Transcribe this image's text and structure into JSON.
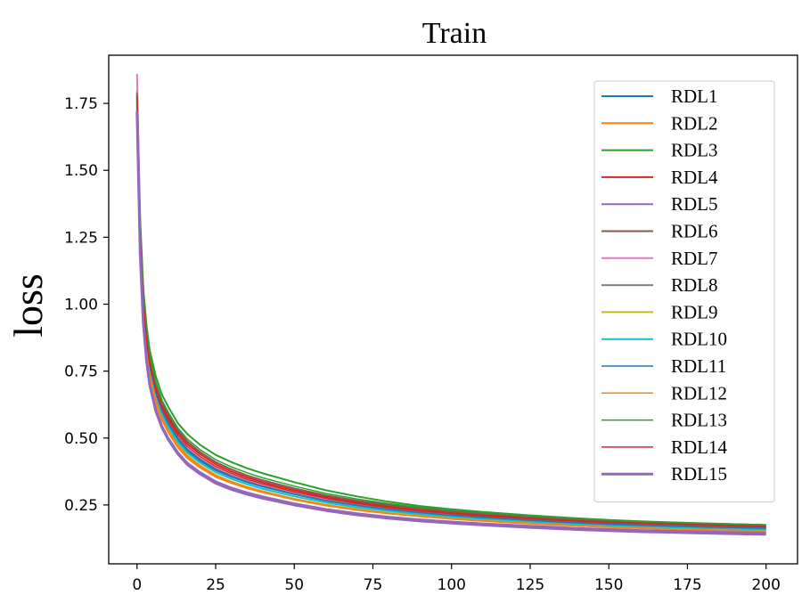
{
  "chart_data": {
    "type": "line",
    "title": "Train",
    "xlabel": "",
    "ylabel": "loss",
    "xlim": [
      -9,
      210
    ],
    "ylim": [
      0.03,
      1.93
    ],
    "x_ticks": [
      0,
      25,
      50,
      75,
      100,
      125,
      150,
      175,
      200
    ],
    "y_ticks": [
      0.25,
      0.5,
      0.75,
      1.0,
      1.25,
      1.5,
      1.75
    ],
    "y_tick_labels": [
      "0.25",
      "0.50",
      "0.75",
      "1.00",
      "1.25",
      "1.50",
      "1.75"
    ],
    "grid": false,
    "legend_position": "upper-right",
    "x_points": [
      0,
      1,
      2,
      3,
      4,
      6,
      8,
      10,
      13,
      16,
      20,
      25,
      30,
      35,
      40,
      50,
      60,
      70,
      80,
      90,
      100,
      110,
      125,
      140,
      150,
      160,
      175,
      190,
      200
    ],
    "series": [
      {
        "name": "RDL1",
        "color": "#1f77b4",
        "width": 2,
        "values": [
          1.76,
          1.25,
          0.99,
          0.85,
          0.76,
          0.66,
          0.59,
          0.545,
          0.49,
          0.45,
          0.415,
          0.38,
          0.355,
          0.335,
          0.318,
          0.29,
          0.266,
          0.248,
          0.234,
          0.222,
          0.212,
          0.204,
          0.193,
          0.184,
          0.179,
          0.175,
          0.17,
          0.166,
          0.163
        ]
      },
      {
        "name": "RDL2",
        "color": "#ff7f0e",
        "width": 2,
        "values": [
          1.74,
          1.22,
          0.96,
          0.82,
          0.73,
          0.63,
          0.565,
          0.52,
          0.465,
          0.425,
          0.39,
          0.355,
          0.332,
          0.313,
          0.297,
          0.27,
          0.248,
          0.231,
          0.218,
          0.207,
          0.198,
          0.19,
          0.18,
          0.172,
          0.167,
          0.163,
          0.158,
          0.154,
          0.151
        ]
      },
      {
        "name": "RDL3",
        "color": "#2ca02c",
        "width": 2,
        "values": [
          1.8,
          1.32,
          1.06,
          0.92,
          0.83,
          0.73,
          0.66,
          0.615,
          0.555,
          0.515,
          0.475,
          0.437,
          0.41,
          0.387,
          0.368,
          0.335,
          0.305,
          0.282,
          0.262,
          0.246,
          0.234,
          0.224,
          0.211,
          0.2,
          0.194,
          0.189,
          0.183,
          0.178,
          0.175
        ]
      },
      {
        "name": "RDL4",
        "color": "#d62728",
        "width": 2,
        "values": [
          1.78,
          1.28,
          1.02,
          0.88,
          0.79,
          0.69,
          0.62,
          0.575,
          0.52,
          0.478,
          0.44,
          0.402,
          0.375,
          0.353,
          0.335,
          0.305,
          0.28,
          0.26,
          0.244,
          0.231,
          0.22,
          0.212,
          0.2,
          0.191,
          0.186,
          0.182,
          0.177,
          0.173,
          0.17
        ]
      },
      {
        "name": "RDL5",
        "color": "#9467bd",
        "width": 2,
        "values": [
          1.73,
          1.2,
          0.94,
          0.8,
          0.71,
          0.61,
          0.545,
          0.5,
          0.447,
          0.408,
          0.373,
          0.338,
          0.315,
          0.297,
          0.282,
          0.256,
          0.235,
          0.219,
          0.206,
          0.196,
          0.188,
          0.181,
          0.172,
          0.164,
          0.16,
          0.156,
          0.152,
          0.148,
          0.146
        ]
      },
      {
        "name": "RDL6",
        "color": "#8c564b",
        "width": 2,
        "values": [
          1.79,
          1.29,
          1.03,
          0.89,
          0.8,
          0.7,
          0.63,
          0.585,
          0.528,
          0.487,
          0.448,
          0.41,
          0.383,
          0.36,
          0.342,
          0.312,
          0.286,
          0.266,
          0.25,
          0.237,
          0.226,
          0.218,
          0.206,
          0.197,
          0.191,
          0.187,
          0.182,
          0.178,
          0.175
        ]
      },
      {
        "name": "RDL7",
        "color": "#e377c2",
        "width": 2,
        "values": [
          1.86,
          1.27,
          1.0,
          0.86,
          0.77,
          0.67,
          0.6,
          0.555,
          0.5,
          0.46,
          0.423,
          0.387,
          0.361,
          0.34,
          0.323,
          0.294,
          0.27,
          0.251,
          0.236,
          0.224,
          0.214,
          0.206,
          0.195,
          0.186,
          0.181,
          0.177,
          0.172,
          0.168,
          0.165
        ]
      },
      {
        "name": "RDL8",
        "color": "#7f7f7f",
        "width": 2,
        "values": [
          1.77,
          1.26,
          1.0,
          0.86,
          0.77,
          0.67,
          0.6,
          0.555,
          0.5,
          0.458,
          0.42,
          0.384,
          0.358,
          0.337,
          0.32,
          0.291,
          0.267,
          0.249,
          0.234,
          0.222,
          0.212,
          0.204,
          0.193,
          0.184,
          0.179,
          0.175,
          0.17,
          0.166,
          0.163
        ]
      },
      {
        "name": "RDL9",
        "color": "#bcbd22",
        "width": 2,
        "values": [
          1.76,
          1.23,
          0.97,
          0.83,
          0.74,
          0.64,
          0.575,
          0.53,
          0.475,
          0.435,
          0.398,
          0.362,
          0.337,
          0.317,
          0.301,
          0.273,
          0.251,
          0.234,
          0.22,
          0.209,
          0.2,
          0.192,
          0.182,
          0.174,
          0.169,
          0.165,
          0.16,
          0.156,
          0.153
        ]
      },
      {
        "name": "RDL10",
        "color": "#17becf",
        "width": 2,
        "values": [
          1.75,
          1.24,
          0.98,
          0.84,
          0.75,
          0.65,
          0.585,
          0.54,
          0.485,
          0.445,
          0.408,
          0.372,
          0.347,
          0.327,
          0.31,
          0.282,
          0.259,
          0.241,
          0.227,
          0.215,
          0.206,
          0.198,
          0.188,
          0.179,
          0.174,
          0.17,
          0.165,
          0.161,
          0.158
        ]
      },
      {
        "name": "RDL11",
        "color": "#1f77b4",
        "width": 1.5,
        "values": [
          1.77,
          1.26,
          1.0,
          0.86,
          0.77,
          0.67,
          0.6,
          0.553,
          0.498,
          0.457,
          0.419,
          0.383,
          0.357,
          0.336,
          0.319,
          0.29,
          0.266,
          0.248,
          0.233,
          0.221,
          0.211,
          0.203,
          0.192,
          0.183,
          0.178,
          0.174,
          0.169,
          0.165,
          0.162
        ]
      },
      {
        "name": "RDL12",
        "color": "#ff7f0e",
        "width": 1.5,
        "values": [
          1.75,
          1.23,
          0.97,
          0.83,
          0.74,
          0.64,
          0.572,
          0.527,
          0.472,
          0.432,
          0.396,
          0.36,
          0.336,
          0.316,
          0.3,
          0.272,
          0.25,
          0.233,
          0.219,
          0.208,
          0.199,
          0.191,
          0.181,
          0.173,
          0.168,
          0.164,
          0.159,
          0.155,
          0.152
        ]
      },
      {
        "name": "RDL13",
        "color": "#2ca02c",
        "width": 1.5,
        "values": [
          1.79,
          1.3,
          1.04,
          0.9,
          0.81,
          0.71,
          0.64,
          0.595,
          0.537,
          0.496,
          0.457,
          0.419,
          0.392,
          0.37,
          0.351,
          0.32,
          0.293,
          0.272,
          0.255,
          0.241,
          0.23,
          0.221,
          0.209,
          0.199,
          0.193,
          0.188,
          0.183,
          0.178,
          0.175
        ]
      },
      {
        "name": "RDL14",
        "color": "#d62728",
        "width": 1.5,
        "values": [
          1.78,
          1.27,
          1.01,
          0.87,
          0.78,
          0.68,
          0.61,
          0.565,
          0.51,
          0.469,
          0.431,
          0.394,
          0.368,
          0.346,
          0.329,
          0.299,
          0.275,
          0.255,
          0.24,
          0.227,
          0.217,
          0.209,
          0.198,
          0.189,
          0.184,
          0.18,
          0.175,
          0.171,
          0.168
        ]
      },
      {
        "name": "RDL15",
        "color": "#9467bd",
        "width": 3,
        "values": [
          1.72,
          1.19,
          0.93,
          0.79,
          0.7,
          0.6,
          0.537,
          0.493,
          0.44,
          0.401,
          0.366,
          0.331,
          0.308,
          0.29,
          0.275,
          0.25,
          0.229,
          0.213,
          0.2,
          0.19,
          0.182,
          0.175,
          0.166,
          0.158,
          0.154,
          0.15,
          0.146,
          0.142,
          0.14
        ]
      }
    ]
  }
}
